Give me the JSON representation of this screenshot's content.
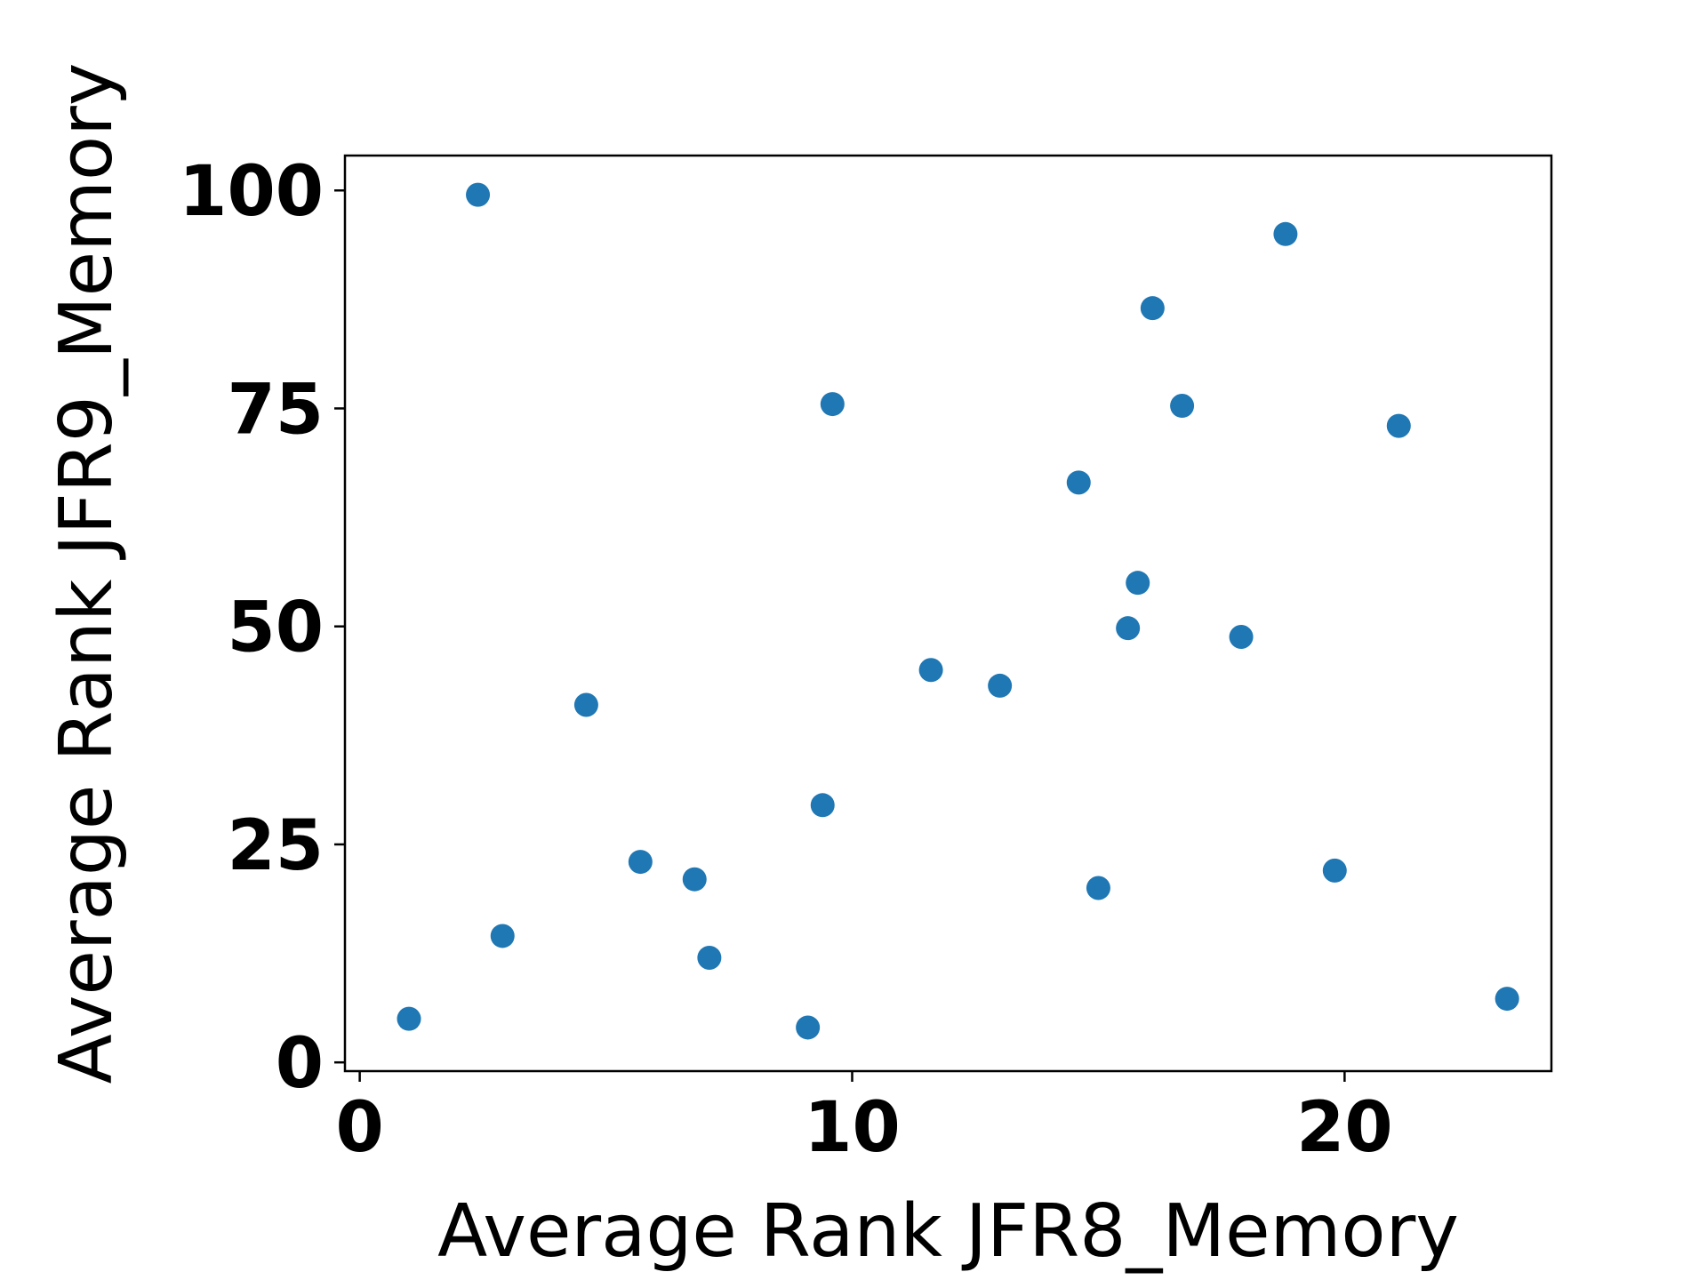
{
  "chart_data": {
    "type": "scatter",
    "xlabel": "Average Rank JFR8_Memory",
    "ylabel": "Average Rank JFR9_Memory",
    "xlim": [
      -0.3,
      24.2
    ],
    "ylim": [
      -1,
      104
    ],
    "xticks": [
      0,
      10,
      20
    ],
    "yticks": [
      0,
      25,
      50,
      75,
      100
    ],
    "grid": false,
    "marker_color": "#1f77b4",
    "points": [
      {
        "x": 1.0,
        "y": 5.0
      },
      {
        "x": 2.4,
        "y": 99.5
      },
      {
        "x": 2.9,
        "y": 14.5
      },
      {
        "x": 4.6,
        "y": 41.0
      },
      {
        "x": 5.7,
        "y": 23.0
      },
      {
        "x": 6.8,
        "y": 21.0
      },
      {
        "x": 7.1,
        "y": 12.0
      },
      {
        "x": 9.1,
        "y": 4.0
      },
      {
        "x": 9.4,
        "y": 29.5
      },
      {
        "x": 9.6,
        "y": 75.5
      },
      {
        "x": 11.6,
        "y": 45.0
      },
      {
        "x": 13.0,
        "y": 43.2
      },
      {
        "x": 14.6,
        "y": 66.5
      },
      {
        "x": 15.0,
        "y": 20.0
      },
      {
        "x": 15.6,
        "y": 49.8
      },
      {
        "x": 15.8,
        "y": 55.0
      },
      {
        "x": 16.1,
        "y": 86.5
      },
      {
        "x": 16.7,
        "y": 75.3
      },
      {
        "x": 17.9,
        "y": 48.8
      },
      {
        "x": 18.8,
        "y": 95.0
      },
      {
        "x": 19.8,
        "y": 22.0
      },
      {
        "x": 21.1,
        "y": 73.0
      },
      {
        "x": 23.3,
        "y": 7.3
      }
    ]
  }
}
